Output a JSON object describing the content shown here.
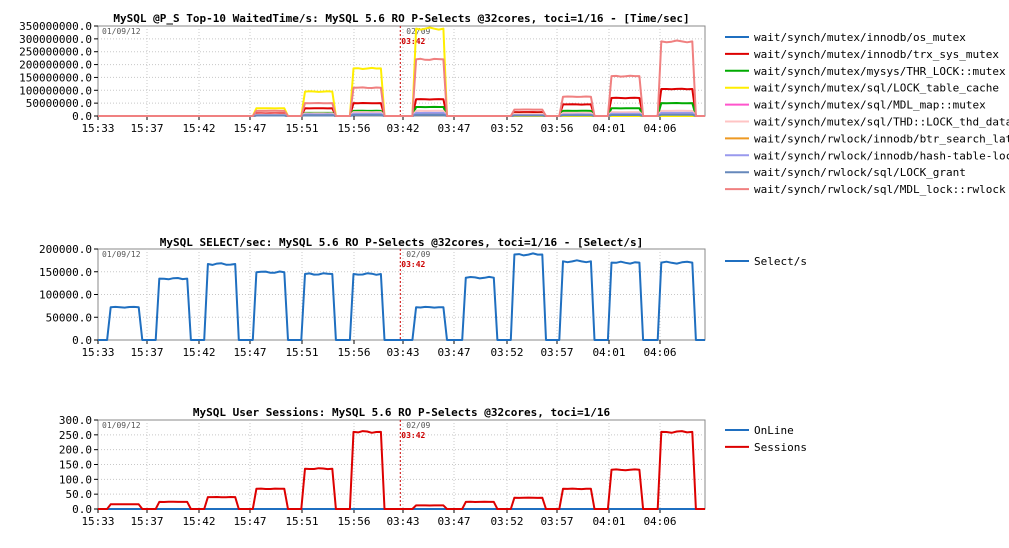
{
  "chart_data": [
    {
      "type": "line",
      "title": "MySQL @P_S Top-10 WaitedTime/s: MySQL 5.6 RO P-Selects @32cores, toci=1/16 - [Time/sec]",
      "ylim": [
        0,
        350000000
      ],
      "y_ticks": [
        "0.0",
        "50000000.0",
        "100000000.0",
        "150000000.0",
        "200000000.0",
        "250000000.0",
        "300000000.0",
        "350000000.0"
      ],
      "x_ticks": [
        "15:33",
        "15:37",
        "15:42",
        "15:47",
        "15:51",
        "15:56",
        "03:42",
        "03:47",
        "03:52",
        "03:56",
        "04:01",
        "04:06"
      ],
      "date_left": "01/09/12",
      "date_right": "02/09",
      "marker_label": "03:42",
      "series": [
        {
          "name": "wait/synch/mutex/innodb/os_mutex",
          "color": "#1f6fc0",
          "values": [
            0,
            0,
            0,
            2000000,
            3000000,
            4000000,
            5000000,
            0,
            1000000,
            2000000,
            3000000,
            4000000
          ]
        },
        {
          "name": "wait/synch/mutex/innodb/trx_sys_mutex",
          "color": "#dd0000",
          "values": [
            0,
            0,
            0,
            10000000,
            30000000,
            50000000,
            65000000,
            0,
            15000000,
            45000000,
            70000000,
            105000000
          ]
        },
        {
          "name": "wait/synch/mutex/mysys/THR_LOCK::mutex",
          "color": "#00aa00",
          "values": [
            0,
            0,
            0,
            5000000,
            12000000,
            20000000,
            35000000,
            0,
            8000000,
            20000000,
            30000000,
            50000000
          ]
        },
        {
          "name": "wait/synch/mutex/sql/LOCK_table_cache",
          "color": "#ffee00",
          "values": [
            0,
            0,
            0,
            30000000,
            95000000,
            185000000,
            340000000,
            0,
            0,
            0,
            0,
            0
          ]
        },
        {
          "name": "wait/synch/mutex/sql/MDL_map::mutex",
          "color": "#ff55cc",
          "values": [
            0,
            0,
            0,
            3000000,
            5000000,
            8000000,
            10000000,
            0,
            3000000,
            5000000,
            8000000,
            10000000
          ]
        },
        {
          "name": "wait/synch/mutex/sql/THD::LOCK_thd_data",
          "color": "#ffc4c4",
          "values": [
            0,
            0,
            0,
            6000000,
            10000000,
            15000000,
            20000000,
            0,
            8000000,
            12000000,
            15000000,
            20000000
          ]
        },
        {
          "name": "wait/synch/rwlock/innodb/btr_search_latch",
          "color": "#ee9922",
          "values": [
            0,
            0,
            0,
            2000000,
            4000000,
            6000000,
            8000000,
            0,
            2000000,
            4000000,
            6000000,
            8000000
          ]
        },
        {
          "name": "wait/synch/rwlock/innodb/hash-table-locks",
          "color": "#9999ee",
          "values": [
            0,
            0,
            0,
            3000000,
            6000000,
            9000000,
            12000000,
            0,
            3000000,
            6000000,
            9000000,
            12000000
          ]
        },
        {
          "name": "wait/synch/rwlock/sql/LOCK_grant",
          "color": "#6688bb",
          "values": [
            0,
            0,
            0,
            2000000,
            3000000,
            4000000,
            5000000,
            0,
            2000000,
            3000000,
            4000000,
            5000000
          ]
        },
        {
          "name": "wait/synch/rwlock/sql/MDL_lock::rwlock",
          "color": "#f08080",
          "values": [
            0,
            0,
            0,
            20000000,
            50000000,
            110000000,
            220000000,
            0,
            25000000,
            75000000,
            155000000,
            290000000
          ]
        }
      ]
    },
    {
      "type": "line",
      "title": "MySQL SELECT/sec: MySQL 5.6 RO P-Selects @32cores, toci=1/16 - [Select/s]",
      "ylim": [
        0,
        200000
      ],
      "y_ticks": [
        "0.0",
        "50000.0",
        "100000.0",
        "150000.0",
        "200000.0"
      ],
      "x_ticks": [
        "15:33",
        "15:37",
        "15:42",
        "15:47",
        "15:51",
        "15:56",
        "03:43",
        "03:47",
        "03:52",
        "03:57",
        "04:01",
        "04:06"
      ],
      "date_left": "01/09/12",
      "date_right": "02/09",
      "marker_label": "03:42",
      "series": [
        {
          "name": "Select/s",
          "color": "#1f6fc0",
          "values": [
            72000,
            135000,
            167000,
            149000,
            145000,
            145000,
            72000,
            137000,
            188000,
            173000,
            170000,
            170000
          ]
        }
      ]
    },
    {
      "type": "line",
      "title": "MySQL User Sessions: MySQL 5.6 RO P-Selects @32cores, toci=1/16",
      "ylim": [
        0,
        300
      ],
      "y_ticks": [
        "0.0",
        "50.0",
        "100.0",
        "150.0",
        "200.0",
        "250.0",
        "300.0"
      ],
      "x_ticks": [
        "15:33",
        "15:37",
        "15:42",
        "15:47",
        "15:51",
        "15:56",
        "03:43",
        "03:47",
        "03:52",
        "03:57",
        "04:01",
        "04:06"
      ],
      "date_left": "01/09/12",
      "date_right": "02/09",
      "marker_label": "03:42",
      "series": [
        {
          "name": "OnLine",
          "color": "#1f6fc0",
          "values": [
            0,
            0,
            0,
            0,
            0,
            0,
            0,
            0,
            0,
            0,
            0,
            0
          ]
        },
        {
          "name": "Sessions",
          "color": "#dd0000",
          "values": [
            16,
            24,
            40,
            68,
            136,
            260,
            12,
            24,
            38,
            68,
            132,
            260
          ]
        }
      ]
    }
  ]
}
